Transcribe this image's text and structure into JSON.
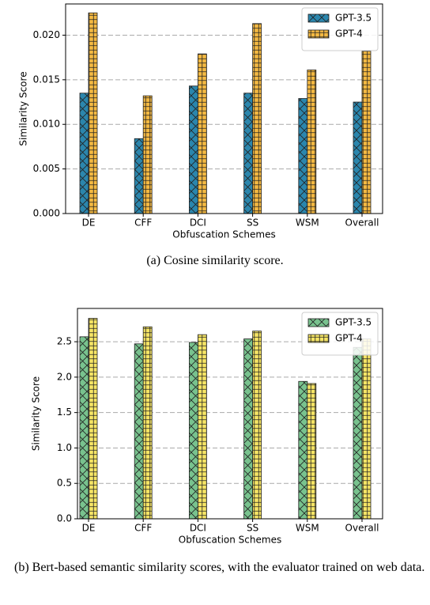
{
  "chart_data": [
    {
      "type": "bar",
      "caption": "(a) Cosine similarity score.",
      "xlabel": "Obfuscation Schemes",
      "ylabel": "Similarity Score",
      "categories": [
        "DE",
        "CFF",
        "DCI",
        "SS",
        "WSM",
        "Overall"
      ],
      "series": [
        {
          "name": "GPT-3.5",
          "color": "#2b86ad",
          "hatch": "x",
          "values": [
            0.0135,
            0.0084,
            0.0143,
            0.0135,
            0.0129,
            0.0125
          ]
        },
        {
          "name": "GPT-4",
          "color": "#f4b942",
          "hatch": "+",
          "values": [
            0.0225,
            0.0132,
            0.0179,
            0.0213,
            0.0161,
            0.0182
          ]
        }
      ],
      "ylim": [
        0,
        0.0235
      ],
      "yticks": [
        {
          "value": 0,
          "label": "0.000"
        },
        0.005,
        {
          "value": 0.01,
          "label": "0.010"
        },
        0.015,
        {
          "value": 0.02,
          "label": "0.020"
        }
      ],
      "grid": true,
      "legend": "upper right"
    },
    {
      "type": "bar",
      "caption": "(b) Bert-based semantic similarity scores, with the evaluator trained on web data.",
      "xlabel": "Obfuscation Schemes",
      "ylabel": "Similarity Score",
      "categories": [
        "DE",
        "CFF",
        "DCI",
        "SS",
        "WSM",
        "Overall"
      ],
      "series": [
        {
          "name": "GPT-3.5",
          "color": "#78c28e",
          "hatch": "x",
          "values": [
            2.57,
            2.47,
            2.49,
            2.54,
            1.94,
            2.42
          ]
        },
        {
          "name": "GPT-4",
          "color": "#f6e565",
          "hatch": "+",
          "values": [
            2.83,
            2.71,
            2.6,
            2.65,
            1.91,
            2.54
          ]
        }
      ],
      "ylim": [
        0,
        2.97
      ],
      "yticks": [
        {
          "value": 0,
          "label": "0.0"
        },
        0.5,
        {
          "value": 1,
          "label": "1.0"
        },
        1.5,
        {
          "value": 2,
          "label": "2.0"
        },
        2.5
      ],
      "grid": true,
      "legend": "upper right"
    }
  ]
}
